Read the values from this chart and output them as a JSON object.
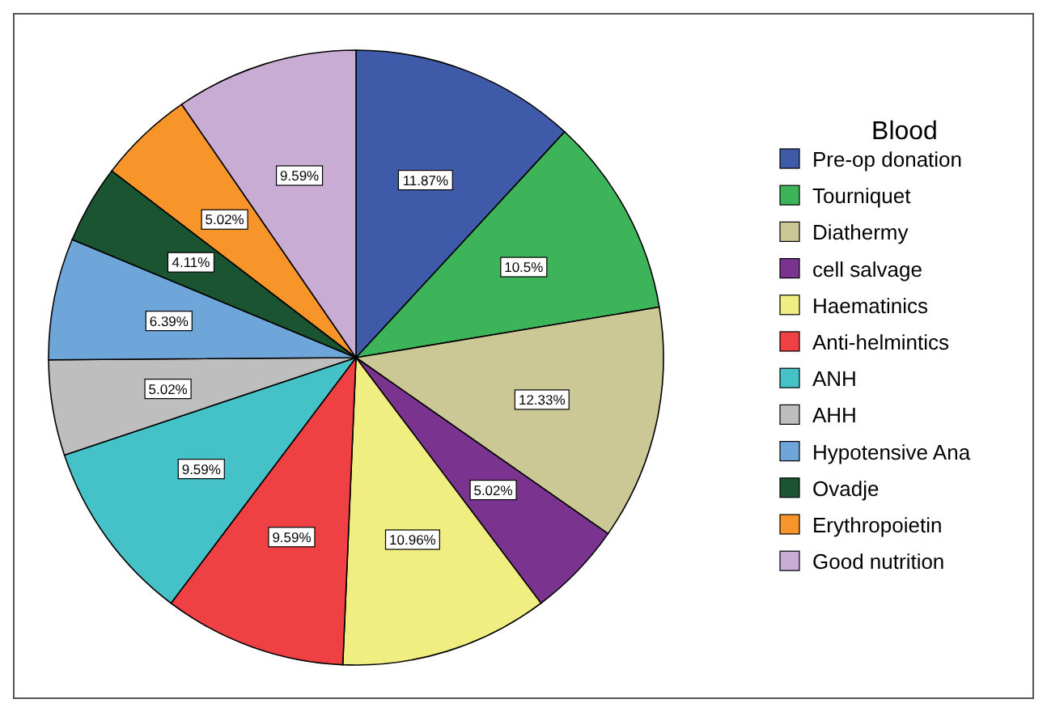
{
  "chart_data": {
    "type": "pie",
    "legend_title": "Blood",
    "legend": "right",
    "categories": [
      "Pre-op donation",
      "Tourniquet",
      "Diathermy",
      "cell salvage",
      "Haematinics",
      "Anti-helmintics",
      "ANH",
      "AHH",
      "Hypotensive Ana",
      "Ovadje",
      "Erythropoietin",
      "Good nutrition"
    ],
    "values": [
      11.87,
      10.5,
      12.33,
      5.02,
      10.96,
      9.59,
      9.59,
      5.02,
      6.39,
      4.11,
      5.02,
      9.59
    ],
    "value_labels": [
      "11.87%",
      "10.5%",
      "12.33%",
      "5.02%",
      "10.96%",
      "9.59%",
      "9.59%",
      "5.02%",
      "6.39%",
      "4.11%",
      "5.02%",
      "9.59%"
    ],
    "colors": [
      "#3f5aa8",
      "#3db45a",
      "#cbc895",
      "#7b3390",
      "#f0ee80",
      "#ef4044",
      "#45c1c8",
      "#bebebe",
      "#6ea6d9",
      "#1a5430",
      "#f7952a",
      "#c9acd4"
    ]
  }
}
